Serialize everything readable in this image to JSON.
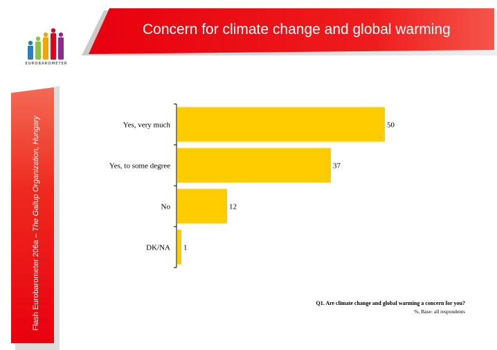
{
  "header": {
    "title": "Concern for climate change and global warming",
    "brand_color": "#e8000e"
  },
  "logo": {
    "wordmark": "EUROBAROMETER",
    "figure_colors": [
      "#2a7fc0",
      "#8cc63f",
      "#f5a400",
      "#e2001a",
      "#8b2a8f"
    ]
  },
  "sidebar": {
    "label_main": "Flash Eurobarometer 206a – ",
    "label_italic": "The Gallup Organization, Hungary"
  },
  "chart_data": {
    "type": "bar",
    "orientation": "horizontal",
    "categories": [
      "Yes, very much",
      "Yes, to some degree",
      "No",
      "DK/NA"
    ],
    "values": [
      50,
      37,
      12,
      1
    ],
    "value_labels": [
      "50",
      "37",
      "12",
      "1"
    ],
    "xlim": [
      0,
      50
    ],
    "bar_color": "#ffcc00",
    "grid": false,
    "legend": "none"
  },
  "footnote": {
    "question": "Q1. Are climate change and global warming a concern for you?",
    "base": "%, Base: all respondents"
  }
}
